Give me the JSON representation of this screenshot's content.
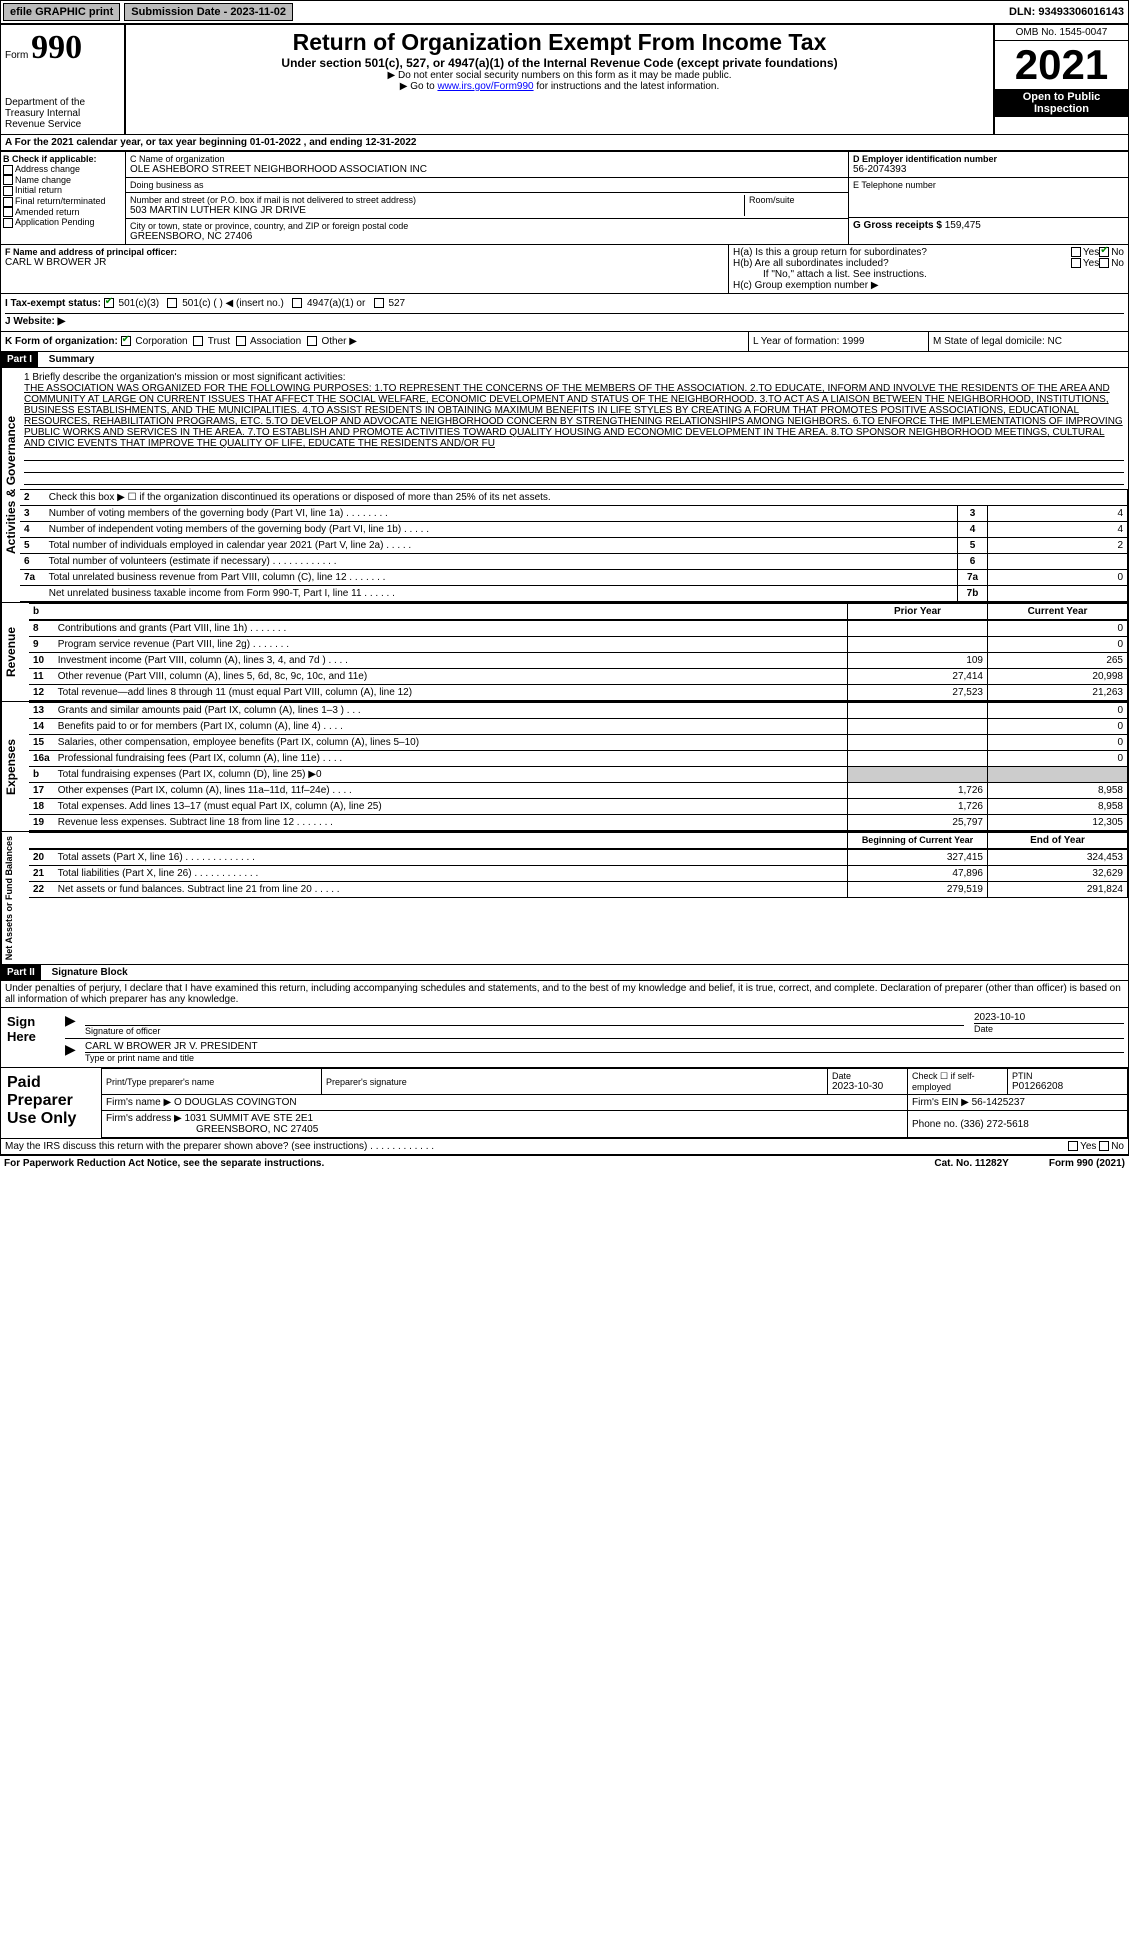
{
  "topbar": {
    "efile": "efile GRAPHIC print",
    "submission_label": "Submission Date - 2023-11-02",
    "dln": "DLN: 93493306016143"
  },
  "header": {
    "form_label": "Form",
    "form_num": "990",
    "dept": "Department of the Treasury\nInternal Revenue Service",
    "title": "Return of Organization Exempt From Income Tax",
    "subtitle": "Under section 501(c), 527, or 4947(a)(1) of the Internal Revenue Code (except private foundations)",
    "warn1": "▶ Do not enter social security numbers on this form as it may be made public.",
    "warn2_pre": "▶ Go to ",
    "warn2_link": "www.irs.gov/Form990",
    "warn2_post": " for instructions and the latest information.",
    "omb": "OMB No. 1545-0047",
    "year": "2021",
    "inspection": "Open to Public Inspection"
  },
  "period": {
    "line_a": "A  For the 2021 calendar year, or tax year beginning 01-01-2022   , and ending 12-31-2022"
  },
  "box_b": {
    "label": "B Check if applicable:",
    "opts": [
      "Address change",
      "Name change",
      "Initial return",
      "Final return/terminated",
      "Amended return",
      "Application Pending"
    ]
  },
  "box_c": {
    "name_label": "C Name of organization",
    "name": "OLE ASHEBORO STREET NEIGHBORHOOD ASSOCIATION INC",
    "dba_label": "Doing business as",
    "addr_label": "Number and street (or P.O. box if mail is not delivered to street address)",
    "addr": "503 MARTIN LUTHER KING JR DRIVE",
    "room_label": "Room/suite",
    "city_label": "City or town, state or province, country, and ZIP or foreign postal code",
    "city": "GREENSBORO, NC  27406"
  },
  "box_d": {
    "label": "D Employer identification number",
    "val": "56-2074393"
  },
  "box_e": {
    "label": "E Telephone number",
    "val": ""
  },
  "box_g": {
    "label": "G Gross receipts $",
    "val": "159,475"
  },
  "box_f": {
    "label": "F  Name and address of principal officer:",
    "val": "CARL W BROWER JR"
  },
  "box_h": {
    "ha": "H(a)  Is this a group return for subordinates?",
    "hb": "H(b)  Are all subordinates included?",
    "hb_note": "If \"No,\" attach a list. See instructions.",
    "hc": "H(c)  Group exemption number ▶",
    "yes": "Yes",
    "no": "No"
  },
  "box_i": {
    "label": "I  Tax-exempt status:",
    "opts": [
      "501(c)(3)",
      "501(c) (  ) ◀ (insert no.)",
      "4947(a)(1) or",
      "527"
    ]
  },
  "box_j": {
    "label": "J  Website: ▶"
  },
  "box_k": {
    "label": "K Form of organization:",
    "opts": [
      "Corporation",
      "Trust",
      "Association",
      "Other ▶"
    ]
  },
  "box_l": {
    "label": "L Year of formation: 1999"
  },
  "box_m": {
    "label": "M State of legal domicile: NC"
  },
  "part1": {
    "label": "Part I",
    "title": "Summary"
  },
  "mission": {
    "label": "1   Briefly describe the organization's mission or most significant activities:",
    "text": "THE ASSOCIATION WAS ORGANIZED FOR THE FOLLOWING PURPOSES: 1.TO REPRESENT THE CONCERNS OF THE MEMBERS OF THE ASSOCIATION. 2.TO EDUCATE, INFORM AND INVOLVE THE RESIDENTS OF THE AREA AND COMMUNITY AT LARGE ON CURRENT ISSUES THAT AFFECT THE SOCIAL WELFARE, ECONOMIC DEVELOPMENT AND STATUS OF THE NEIGHBORHOOD. 3.TO ACT AS A LIAISON BETWEEN THE NEIGHBORHOOD, INSTITUTIONS, BUSINESS ESTABLISHMENTS, AND THE MUNICIPALITIES. 4.TO ASSIST RESIDENTS IN OBTAINING MAXIMUM BENEFITS IN LIFE STYLES BY CREATING A FORUM THAT PROMOTES POSITIVE ASSOCIATIONS, EDUCATIONAL RESOURCES, REHABILITATION PROGRAMS, ETC. 5.TO DEVELOP AND ADVOCATE NEIGHBORHOOD CONCERN BY STRENGTHENING RELATIONSHIPS AMONG NEIGHBORS. 6.TO ENFORCE THE IMPLEMENTATIONS OF IMPROVING PUBLIC WORKS AND SERVICES IN THE AREA. 7.TO ESTABLISH AND PROMOTE ACTIVITIES TOWARD QUALITY HOUSING AND ECONOMIC DEVELOPMENT IN THE AREA. 8.TO SPONSOR NEIGHBORHOOD MEETINGS, CULTURAL AND CIVIC EVENTS THAT IMPROVE THE QUALITY OF LIFE, EDUCATE THE RESIDENTS AND/OR FU"
  },
  "lines_gov": [
    {
      "n": "2",
      "t": "Check this box ▶ ☐ if the organization discontinued its operations or disposed of more than 25% of its net assets."
    },
    {
      "n": "3",
      "t": "Number of voting members of the governing body (Part VI, line 1a)  .  .  .  .  .  .  .  .",
      "box": "3",
      "v": "4"
    },
    {
      "n": "4",
      "t": "Number of independent voting members of the governing body (Part VI, line 1b)  .  .  .  .  .",
      "box": "4",
      "v": "4"
    },
    {
      "n": "5",
      "t": "Total number of individuals employed in calendar year 2021 (Part V, line 2a)  .  .  .  .  .",
      "box": "5",
      "v": "2"
    },
    {
      "n": "6",
      "t": "Total number of volunteers (estimate if necessary)  .  .  .  .  .  .  .  .  .  .  .  .",
      "box": "6",
      "v": ""
    },
    {
      "n": "7a",
      "t": "Total unrelated business revenue from Part VIII, column (C), line 12  .  .  .  .  .  .  .",
      "box": "7a",
      "v": "0"
    },
    {
      "n": "",
      "t": "Net unrelated business taxable income from Form 990-T, Part I, line 11  .  .  .  .  .  .",
      "box": "7b",
      "v": ""
    }
  ],
  "col_headers": {
    "prior": "Prior Year",
    "current": "Current Year",
    "boy": "Beginning of Current Year",
    "eoy": "End of Year"
  },
  "lines_rev": [
    {
      "n": "8",
      "t": "Contributions and grants (Part VIII, line 1h)  .  .  .  .  .  .  .",
      "p": "",
      "c": "0"
    },
    {
      "n": "9",
      "t": "Program service revenue (Part VIII, line 2g)  .  .  .  .  .  .  .",
      "p": "",
      "c": "0"
    },
    {
      "n": "10",
      "t": "Investment income (Part VIII, column (A), lines 3, 4, and 7d )  .  .  .  .",
      "p": "109",
      "c": "265"
    },
    {
      "n": "11",
      "t": "Other revenue (Part VIII, column (A), lines 5, 6d, 8c, 9c, 10c, and 11e)",
      "p": "27,414",
      "c": "20,998"
    },
    {
      "n": "12",
      "t": "Total revenue—add lines 8 through 11 (must equal Part VIII, column (A), line 12)",
      "p": "27,523",
      "c": "21,263"
    }
  ],
  "lines_exp": [
    {
      "n": "13",
      "t": "Grants and similar amounts paid (Part IX, column (A), lines 1–3 )  .  .  .",
      "p": "",
      "c": "0"
    },
    {
      "n": "14",
      "t": "Benefits paid to or for members (Part IX, column (A), line 4)  .  .  .  .",
      "p": "",
      "c": "0"
    },
    {
      "n": "15",
      "t": "Salaries, other compensation, employee benefits (Part IX, column (A), lines 5–10)",
      "p": "",
      "c": "0"
    },
    {
      "n": "16a",
      "t": "Professional fundraising fees (Part IX, column (A), line 11e)  .  .  .  .",
      "p": "",
      "c": "0"
    },
    {
      "n": "b",
      "t": "Total fundraising expenses (Part IX, column (D), line 25) ▶0",
      "p": "shade",
      "c": "shade"
    },
    {
      "n": "17",
      "t": "Other expenses (Part IX, column (A), lines 11a–11d, 11f–24e)  .  .  .  .",
      "p": "1,726",
      "c": "8,958"
    },
    {
      "n": "18",
      "t": "Total expenses. Add lines 13–17 (must equal Part IX, column (A), line 25)",
      "p": "1,726",
      "c": "8,958"
    },
    {
      "n": "19",
      "t": "Revenue less expenses. Subtract line 18 from line 12  .  .  .  .  .  .  .",
      "p": "25,797",
      "c": "12,305"
    }
  ],
  "lines_net": [
    {
      "n": "20",
      "t": "Total assets (Part X, line 16)  .  .  .  .  .  .  .  .  .  .  .  .  .",
      "p": "327,415",
      "c": "324,453"
    },
    {
      "n": "21",
      "t": "Total liabilities (Part X, line 26)  .  .  .  .  .  .  .  .  .  .  .  .",
      "p": "47,896",
      "c": "32,629"
    },
    {
      "n": "22",
      "t": "Net assets or fund balances. Subtract line 21 from line 20  .  .  .  .  .",
      "p": "279,519",
      "c": "291,824"
    }
  ],
  "side_labels": {
    "gov": "Activities & Governance",
    "rev": "Revenue",
    "exp": "Expenses",
    "net": "Net Assets or Fund Balances"
  },
  "part2": {
    "label": "Part II",
    "title": "Signature Block"
  },
  "perjury": "Under penalties of perjury, I declare that I have examined this return, including accompanying schedules and statements, and to the best of my knowledge and belief, it is true, correct, and complete. Declaration of preparer (other than officer) is based on all information of which preparer has any knowledge.",
  "sign": {
    "here": "Sign Here",
    "sig_officer": "Signature of officer",
    "date": "Date",
    "date_val": "2023-10-10",
    "typed": "CARL W BROWER JR V. PRESIDENT",
    "typed_label": "Type or print name and title"
  },
  "paid": {
    "label": "Paid Preparer Use Only",
    "h1": "Print/Type preparer's name",
    "h2": "Preparer's signature",
    "h3": "Date",
    "h3v": "2023-10-30",
    "h4": "Check ☐ if self-employed",
    "h5": "PTIN",
    "h5v": "P01266208",
    "firm_label": "Firm's name    ▶",
    "firm": "O DOUGLAS COVINGTON",
    "ein_label": "Firm's EIN ▶",
    "ein": "56-1425237",
    "addr_label": "Firm's address ▶",
    "addr1": "1031 SUMMIT AVE STE 2E1",
    "addr2": "GREENSBORO, NC 27405",
    "phone_label": "Phone no.",
    "phone": "(336) 272-5618"
  },
  "footer": {
    "discuss": "May the IRS discuss this return with the preparer shown above? (see instructions)  .  .  .  .  .  .  .  .  .  .  .  .",
    "yes": "Yes",
    "no": "No",
    "paperwork": "For Paperwork Reduction Act Notice, see the separate instructions.",
    "cat": "Cat. No. 11282Y",
    "form": "Form 990 (2021)"
  }
}
